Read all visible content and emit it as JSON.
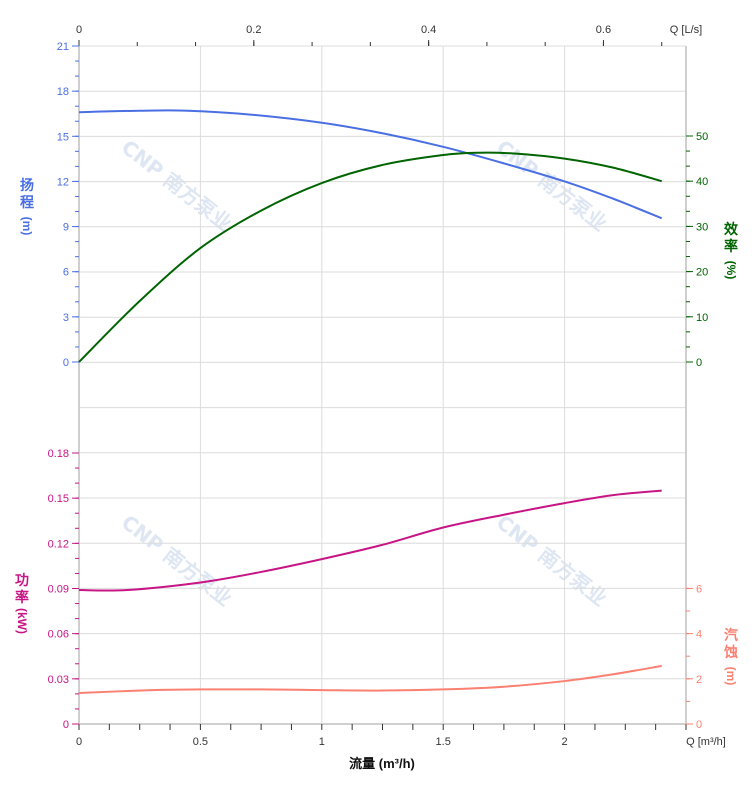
{
  "chart_data": [
    {
      "type": "line",
      "panel": "upper",
      "xlabel": "流量 (m³/h)",
      "x_unit_label": "Q [m³/h]",
      "x_top_unit_label": "Q [L/s]",
      "xlim": [
        0,
        2.5
      ],
      "x_ticks": [
        "0",
        "0.5",
        "1",
        "1.5",
        "2"
      ],
      "x_top_ticks": [
        "0",
        "0.2",
        "0.4",
        "0.6"
      ],
      "x_top_tick_values": [
        0,
        0.2,
        0.4,
        0.6
      ],
      "left_axis": {
        "label_chars": [
          "扬",
          "程"
        ],
        "unit": "(m)",
        "ylim": [
          0,
          21
        ],
        "ticks": [
          "0",
          "3",
          "6",
          "9",
          "12",
          "15",
          "18",
          "21"
        ],
        "color": "#4a6fe3"
      },
      "right_axis": {
        "label_chars": [
          "效",
          "率"
        ],
        "unit": "(%)",
        "ylim": [
          0,
          50
        ],
        "ticks": [
          "0",
          "10",
          "20",
          "30",
          "40",
          "50"
        ],
        "color": "#006400"
      },
      "series": [
        {
          "axis": "left",
          "color": "#4a6fe3",
          "x": [
            0,
            0.25,
            0.45,
            0.7,
            1.0,
            1.25,
            1.5,
            1.75,
            2.0,
            2.2,
            2.4
          ],
          "y": [
            16.6,
            16.7,
            16.7,
            16.45,
            15.9,
            15.2,
            14.3,
            13.2,
            12.0,
            10.85,
            9.55
          ]
        },
        {
          "axis": "right",
          "color": "#006400",
          "x": [
            0,
            0.25,
            0.5,
            0.75,
            1.0,
            1.25,
            1.5,
            1.65,
            1.8,
            2.0,
            2.2,
            2.4
          ],
          "y": [
            0,
            13.5,
            25.2,
            33.5,
            39.6,
            43.6,
            45.8,
            46.3,
            46.1,
            45.0,
            43.0,
            40.0
          ]
        }
      ],
      "grid": true
    },
    {
      "type": "line",
      "panel": "lower",
      "left_axis": {
        "label_chars": [
          "功",
          "率"
        ],
        "unit": "(kW)",
        "ylim": [
          0,
          0.18
        ],
        "ticks": [
          "0",
          "0.03",
          "0.06",
          "0.09",
          "0.12",
          "0.15",
          "0.18"
        ],
        "color": "#c71585"
      },
      "right_axis": {
        "label_chars": [
          "汽",
          "蚀"
        ],
        "unit": "(m)",
        "ylim": [
          0,
          6
        ],
        "ticks": [
          "0",
          "2",
          "4",
          "6"
        ],
        "color": "#fa8072"
      },
      "series": [
        {
          "axis": "left",
          "color": "#c71585",
          "x": [
            0,
            0.2,
            0.5,
            0.75,
            1.0,
            1.25,
            1.5,
            1.75,
            2.0,
            2.2,
            2.4
          ],
          "y": [
            0.089,
            0.089,
            0.094,
            0.101,
            0.1095,
            0.119,
            0.1305,
            0.139,
            0.1467,
            0.152,
            0.155
          ]
        },
        {
          "axis": "right",
          "color": "#fa8072",
          "x": [
            0,
            0.3,
            0.5,
            0.75,
            1.0,
            1.25,
            1.5,
            1.75,
            2.0,
            2.2,
            2.4
          ],
          "y": [
            1.37,
            1.5,
            1.53,
            1.53,
            1.5,
            1.48,
            1.53,
            1.65,
            1.9,
            2.2,
            2.57
          ]
        }
      ],
      "grid": true
    }
  ],
  "watermark": "CNP 南方泵业"
}
